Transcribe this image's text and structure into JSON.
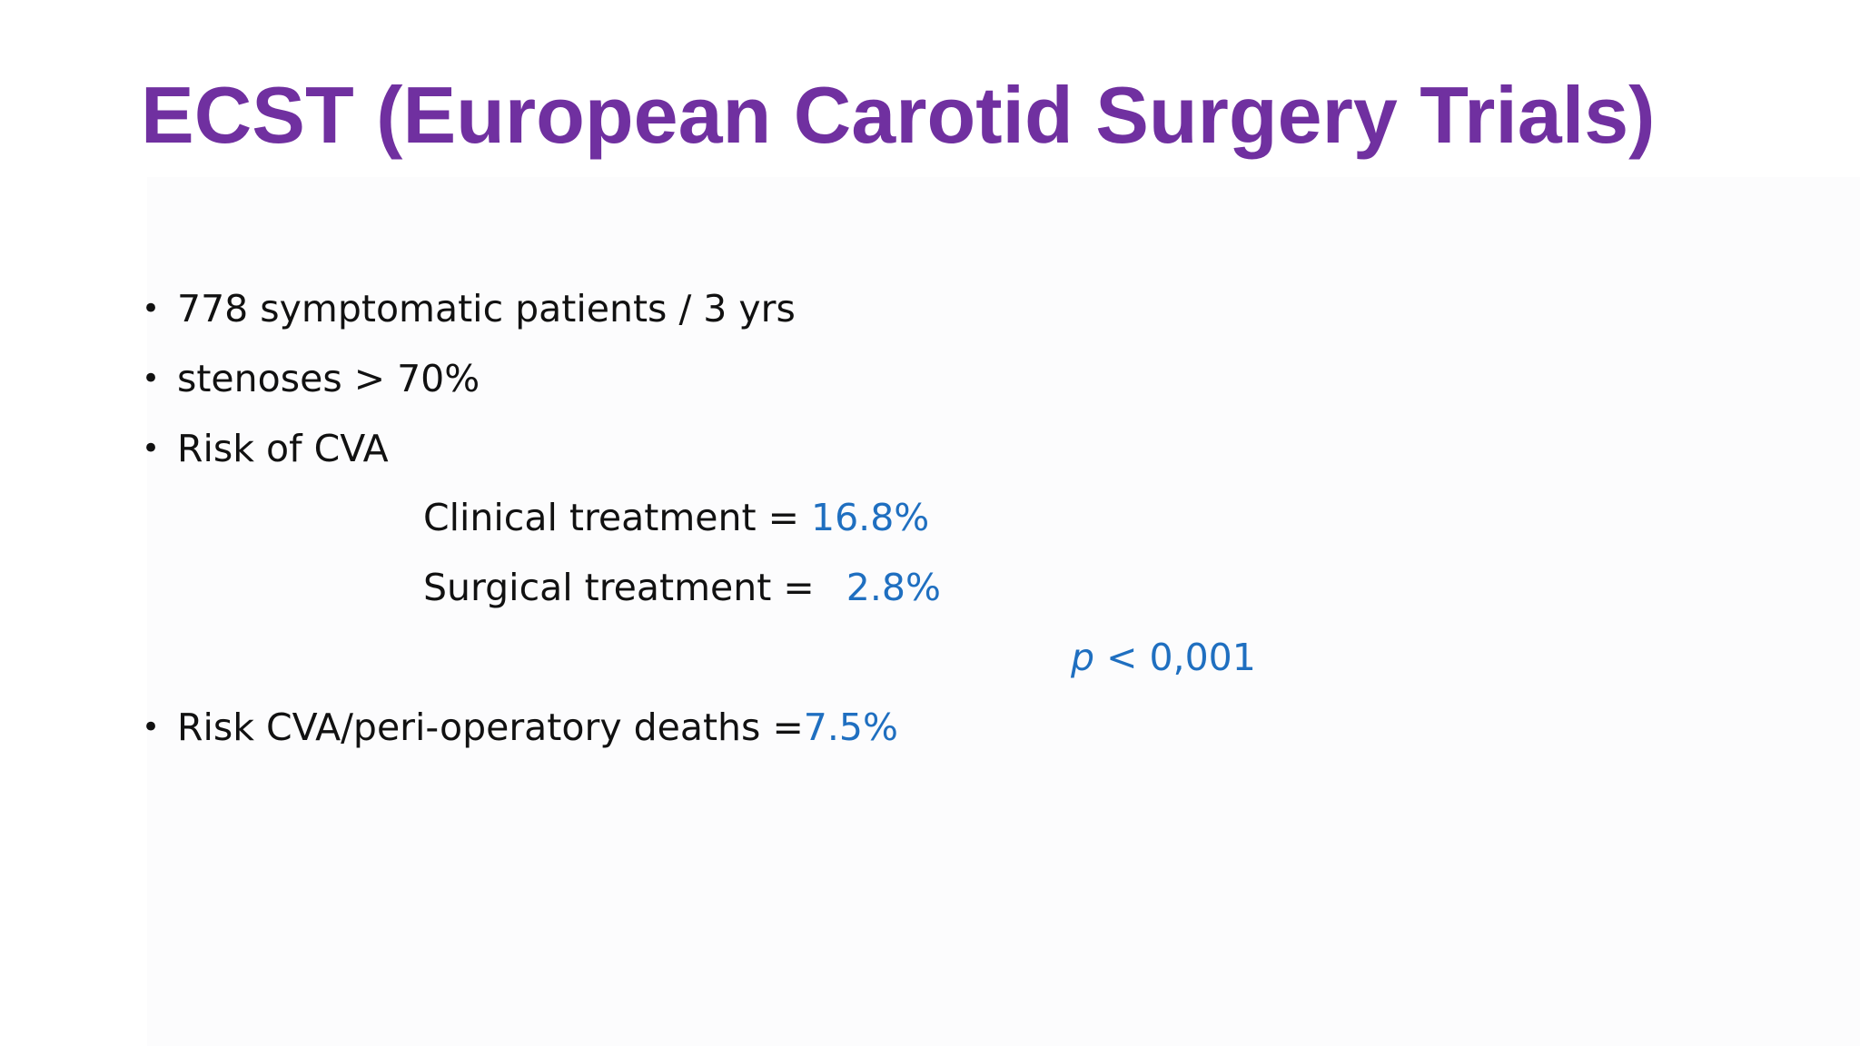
{
  "slide": {
    "title": "ECST (European Carotid Surgery Trials)",
    "bullets": [
      "778 symptomatic patients / 3 yrs",
      "stenoses > 70%",
      "Risk of CVA"
    ],
    "clinical": {
      "label": "Clinical treatment = ",
      "value": "16.8%"
    },
    "surgical": {
      "label": "Surgical treatment = ",
      "value": "2.8%"
    },
    "pvalue": {
      "symbol": "p",
      "text": " < 0,001"
    },
    "last_bullet": {
      "label": "Risk CVA/peri-operatory deaths =",
      "value": "7.5%"
    },
    "colors": {
      "title": "#7030a0",
      "accent": "#1f6fc0",
      "text": "#111111"
    }
  }
}
